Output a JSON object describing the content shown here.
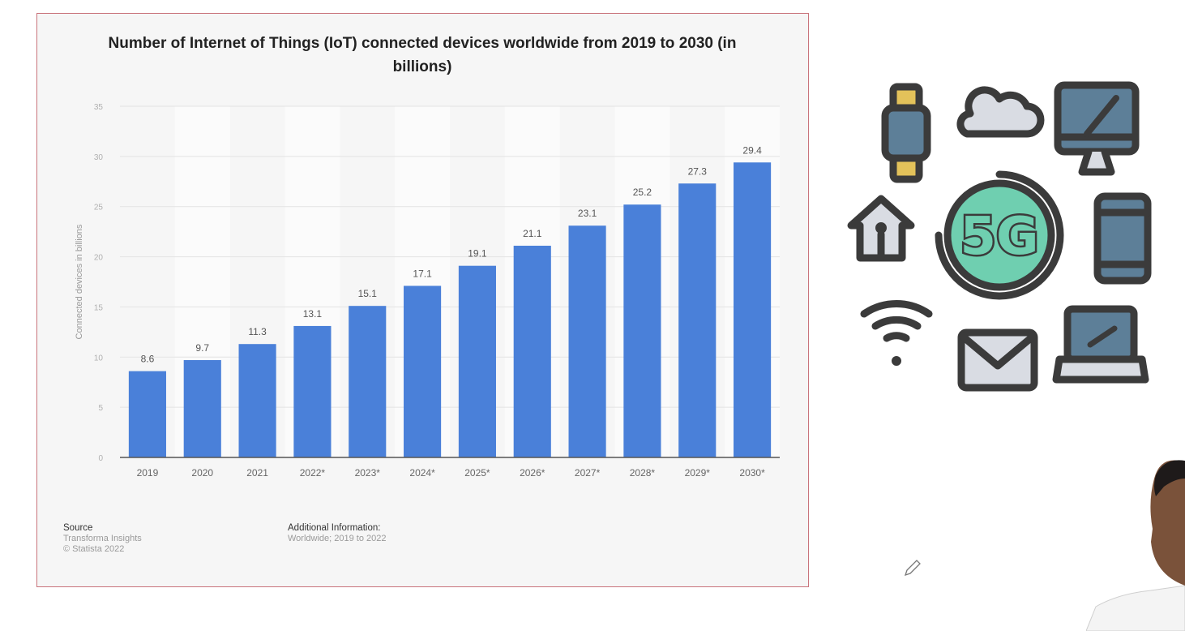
{
  "chart_data": {
    "type": "bar",
    "title": "Number of Internet of Things (IoT) connected devices worldwide from 2019 to 2030 (in billions)",
    "xlabel": "",
    "ylabel": "Connected devices in billions",
    "categories": [
      "2019",
      "2020",
      "2021",
      "2022*",
      "2023*",
      "2024*",
      "2025*",
      "2026*",
      "2027*",
      "2028*",
      "2029*",
      "2030*"
    ],
    "values": [
      8.6,
      9.7,
      11.3,
      13.1,
      15.1,
      17.1,
      19.1,
      21.1,
      23.1,
      25.2,
      27.3,
      29.4
    ],
    "value_labels": [
      "8.6",
      "9.7",
      "11.3",
      "13.1",
      "15.1",
      "17.1",
      "19.1",
      "21.1",
      "23.1",
      "25.2",
      "27.3",
      "29.4"
    ],
    "yticks": [
      "0",
      "5",
      "10",
      "15",
      "20",
      "25",
      "30",
      "35"
    ],
    "ylim": [
      0,
      35
    ],
    "grid": true,
    "bar_color": "#4a80d9"
  },
  "footer": {
    "source_heading": "Source",
    "source_lines": [
      "Transforma Insights",
      "© Statista 2022"
    ],
    "info_heading": "Additional Information:",
    "info_text": "Worldwide; 2019 to 2022"
  },
  "illustration": {
    "center_text": "5G",
    "icons": [
      "smartwatch-icon",
      "cloud-icon",
      "desktop-monitor-icon",
      "home-icon",
      "smartphone-icon",
      "wifi-icon",
      "email-icon",
      "laptop-icon"
    ],
    "accent_color": "#6fcfb0",
    "screen_color": "#5d7f98",
    "outline_color": "#3b3b3b"
  },
  "overlay": {
    "annotation_tool": "pencil-icon"
  }
}
